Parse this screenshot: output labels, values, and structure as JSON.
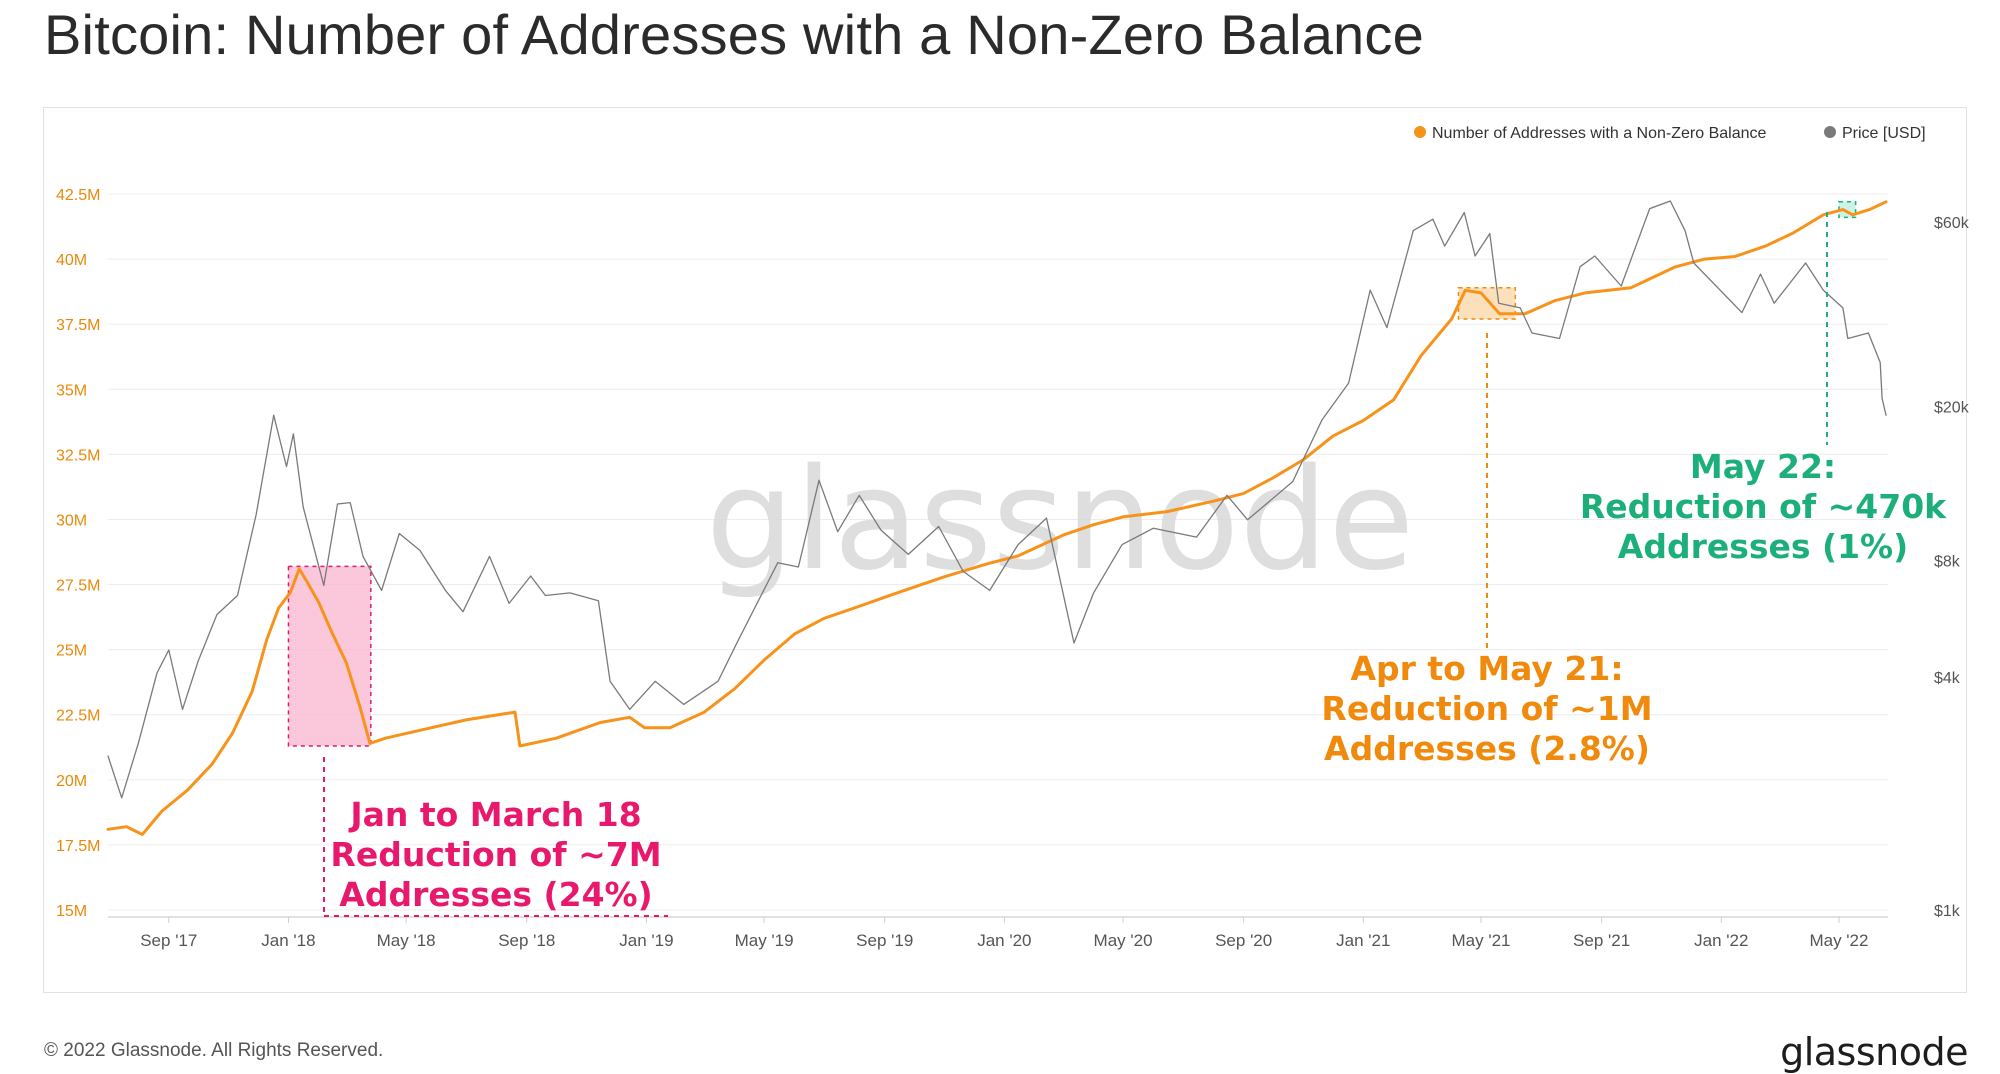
{
  "page": {
    "title": "Bitcoin: Number of Addresses with a Non-Zero Balance",
    "copyright": "© 2022 Glassnode. All Rights Reserved.",
    "logo_text": "glassnode",
    "watermark": "glassnode"
  },
  "chart_data": {
    "type": "line",
    "x_range": [
      "2017-07-01",
      "2022-06-20"
    ],
    "x_ticks": [
      {
        "label": "Sep '17",
        "date": "2017-09-01"
      },
      {
        "label": "Jan '18",
        "date": "2018-01-01"
      },
      {
        "label": "May '18",
        "date": "2018-05-01"
      },
      {
        "label": "Sep '18",
        "date": "2018-09-01"
      },
      {
        "label": "Jan '19",
        "date": "2019-01-01"
      },
      {
        "label": "May '19",
        "date": "2019-05-01"
      },
      {
        "label": "Sep '19",
        "date": "2019-09-01"
      },
      {
        "label": "Jan '20",
        "date": "2020-01-01"
      },
      {
        "label": "May '20",
        "date": "2020-05-01"
      },
      {
        "label": "Sep '20",
        "date": "2020-09-01"
      },
      {
        "label": "Jan '21",
        "date": "2021-01-01"
      },
      {
        "label": "May '21",
        "date": "2021-05-01"
      },
      {
        "label": "Sep '21",
        "date": "2021-09-01"
      },
      {
        "label": "Jan '22",
        "date": "2022-01-01"
      },
      {
        "label": "May '22",
        "date": "2022-05-01"
      }
    ],
    "y_left": {
      "range": [
        15,
        42.5
      ],
      "unit": "M",
      "ticks": [
        {
          "value": 15,
          "label": "15M"
        },
        {
          "value": 17.5,
          "label": "17.5M"
        },
        {
          "value": 20,
          "label": "20M"
        },
        {
          "value": 22.5,
          "label": "22.5M"
        },
        {
          "value": 25,
          "label": "25M"
        },
        {
          "value": 27.5,
          "label": "27.5M"
        },
        {
          "value": 30,
          "label": "30M"
        },
        {
          "value": 32.5,
          "label": "32.5M"
        },
        {
          "value": 35,
          "label": "35M"
        },
        {
          "value": 37.5,
          "label": "37.5M"
        },
        {
          "value": 40,
          "label": "40M"
        },
        {
          "value": 42.5,
          "label": "42.5M"
        }
      ]
    },
    "y_right": {
      "scale": "log",
      "range": [
        1000,
        66000
      ],
      "ticks": [
        {
          "value": 1000,
          "label": "$1k"
        },
        {
          "value": 4000,
          "label": "$4k"
        },
        {
          "value": 8000,
          "label": "$8k"
        },
        {
          "value": 20000,
          "label": "$20k"
        },
        {
          "value": 60000,
          "label": "$60k"
        }
      ]
    },
    "grid": true,
    "legend_position": "top-right",
    "colors": {
      "addresses": "#f7931a",
      "price": "#7a7a7a",
      "pink": "#e8186d",
      "green": "#1daf7a",
      "orange_text": "#f08a0c"
    },
    "series": [
      {
        "name": "Number of Addresses with a Non-Zero Balance",
        "axis": "left",
        "color": "#f7931a",
        "points": [
          [
            "2017-07-01",
            18.1
          ],
          [
            "2017-07-20",
            18.2
          ],
          [
            "2017-08-05",
            17.9
          ],
          [
            "2017-08-25",
            18.8
          ],
          [
            "2017-09-20",
            19.6
          ],
          [
            "2017-10-15",
            20.6
          ],
          [
            "2017-11-05",
            21.8
          ],
          [
            "2017-11-25",
            23.4
          ],
          [
            "2017-12-10",
            25.4
          ],
          [
            "2017-12-22",
            26.6
          ],
          [
            "2018-01-03",
            27.2
          ],
          [
            "2018-01-12",
            28.1
          ],
          [
            "2018-01-20",
            27.6
          ],
          [
            "2018-02-01",
            26.8
          ],
          [
            "2018-02-15",
            25.6
          ],
          [
            "2018-03-01",
            24.5
          ],
          [
            "2018-03-15",
            22.8
          ],
          [
            "2018-03-25",
            21.4
          ],
          [
            "2018-04-10",
            21.6
          ],
          [
            "2018-05-15",
            21.9
          ],
          [
            "2018-07-01",
            22.3
          ],
          [
            "2018-08-20",
            22.6
          ],
          [
            "2018-08-25",
            21.3
          ],
          [
            "2018-10-01",
            21.6
          ],
          [
            "2018-11-15",
            22.2
          ],
          [
            "2018-12-15",
            22.4
          ],
          [
            "2018-12-30",
            22.0
          ],
          [
            "2019-01-25",
            22.0
          ],
          [
            "2019-03-01",
            22.6
          ],
          [
            "2019-04-01",
            23.5
          ],
          [
            "2019-05-01",
            24.6
          ],
          [
            "2019-06-01",
            25.6
          ],
          [
            "2019-07-01",
            26.2
          ],
          [
            "2019-08-01",
            26.6
          ],
          [
            "2019-09-15",
            27.2
          ],
          [
            "2019-11-01",
            27.8
          ],
          [
            "2019-12-15",
            28.3
          ],
          [
            "2020-01-15",
            28.6
          ],
          [
            "2020-03-01",
            29.4
          ],
          [
            "2020-04-01",
            29.8
          ],
          [
            "2020-05-01",
            30.1
          ],
          [
            "2020-06-15",
            30.3
          ],
          [
            "2020-08-01",
            30.7
          ],
          [
            "2020-09-01",
            31.0
          ],
          [
            "2020-10-01",
            31.6
          ],
          [
            "2020-11-01",
            32.3
          ],
          [
            "2020-12-01",
            33.2
          ],
          [
            "2021-01-01",
            33.8
          ],
          [
            "2021-02-01",
            34.6
          ],
          [
            "2021-03-01",
            36.3
          ],
          [
            "2021-04-01",
            37.7
          ],
          [
            "2021-04-15",
            38.8
          ],
          [
            "2021-05-01",
            38.7
          ],
          [
            "2021-05-20",
            37.9
          ],
          [
            "2021-06-15",
            37.9
          ],
          [
            "2021-07-15",
            38.4
          ],
          [
            "2021-08-15",
            38.7
          ],
          [
            "2021-10-01",
            38.9
          ],
          [
            "2021-11-15",
            39.7
          ],
          [
            "2021-12-15",
            40.0
          ],
          [
            "2022-01-15",
            40.1
          ],
          [
            "2022-02-15",
            40.5
          ],
          [
            "2022-03-15",
            41.0
          ],
          [
            "2022-04-15",
            41.7
          ],
          [
            "2022-05-05",
            41.9
          ],
          [
            "2022-05-15",
            41.7
          ],
          [
            "2022-06-01",
            41.9
          ],
          [
            "2022-06-18",
            42.2
          ]
        ]
      },
      {
        "name": "Price [USD]",
        "axis": "right",
        "color": "#7a7a7a",
        "points": [
          [
            "2017-07-01",
            2500
          ],
          [
            "2017-07-15",
            1950
          ],
          [
            "2017-08-01",
            2700
          ],
          [
            "2017-08-20",
            4100
          ],
          [
            "2017-09-01",
            4700
          ],
          [
            "2017-09-15",
            3300
          ],
          [
            "2017-10-01",
            4400
          ],
          [
            "2017-10-20",
            5800
          ],
          [
            "2017-11-10",
            6500
          ],
          [
            "2017-11-29",
            10500
          ],
          [
            "2017-12-17",
            19000
          ],
          [
            "2017-12-30",
            14000
          ],
          [
            "2018-01-06",
            17000
          ],
          [
            "2018-01-16",
            11000
          ],
          [
            "2018-02-06",
            6900
          ],
          [
            "2018-02-20",
            11200
          ],
          [
            "2018-03-05",
            11300
          ],
          [
            "2018-03-18",
            8200
          ],
          [
            "2018-04-06",
            6700
          ],
          [
            "2018-04-24",
            9400
          ],
          [
            "2018-05-15",
            8500
          ],
          [
            "2018-06-10",
            6700
          ],
          [
            "2018-06-28",
            5900
          ],
          [
            "2018-07-25",
            8200
          ],
          [
            "2018-08-14",
            6200
          ],
          [
            "2018-09-05",
            7300
          ],
          [
            "2018-09-20",
            6500
          ],
          [
            "2018-10-15",
            6600
          ],
          [
            "2018-11-13",
            6300
          ],
          [
            "2018-11-25",
            3900
          ],
          [
            "2018-12-15",
            3300
          ],
          [
            "2019-01-10",
            3900
          ],
          [
            "2019-02-08",
            3400
          ],
          [
            "2019-03-15",
            3900
          ],
          [
            "2019-04-05",
            5000
          ],
          [
            "2019-05-15",
            7900
          ],
          [
            "2019-06-05",
            7700
          ],
          [
            "2019-06-26",
            12900
          ],
          [
            "2019-07-15",
            9500
          ],
          [
            "2019-08-06",
            11800
          ],
          [
            "2019-08-28",
            9600
          ],
          [
            "2019-09-25",
            8300
          ],
          [
            "2019-10-26",
            9800
          ],
          [
            "2019-11-20",
            7500
          ],
          [
            "2019-12-17",
            6700
          ],
          [
            "2020-01-15",
            8800
          ],
          [
            "2020-02-13",
            10300
          ],
          [
            "2020-03-12",
            4900
          ],
          [
            "2020-04-01",
            6600
          ],
          [
            "2020-04-30",
            8800
          ],
          [
            "2020-06-01",
            9700
          ],
          [
            "2020-07-15",
            9200
          ],
          [
            "2020-08-15",
            11800
          ],
          [
            "2020-09-05",
            10200
          ],
          [
            "2020-10-21",
            12800
          ],
          [
            "2020-11-20",
            18500
          ],
          [
            "2020-12-17",
            23000
          ],
          [
            "2021-01-08",
            40000
          ],
          [
            "2021-01-25",
            32000
          ],
          [
            "2021-02-21",
            57000
          ],
          [
            "2021-03-13",
            61000
          ],
          [
            "2021-03-25",
            52000
          ],
          [
            "2021-04-14",
            63500
          ],
          [
            "2021-04-25",
            49000
          ],
          [
            "2021-05-10",
            56000
          ],
          [
            "2021-05-19",
            37000
          ],
          [
            "2021-06-10",
            36000
          ],
          [
            "2021-06-22",
            31000
          ],
          [
            "2021-07-20",
            30000
          ],
          [
            "2021-08-10",
            46000
          ],
          [
            "2021-08-25",
            49000
          ],
          [
            "2021-09-21",
            41000
          ],
          [
            "2021-10-20",
            65000
          ],
          [
            "2021-11-10",
            68000
          ],
          [
            "2021-11-25",
            57000
          ],
          [
            "2021-12-04",
            47000
          ],
          [
            "2022-01-22",
            35000
          ],
          [
            "2022-02-10",
            44000
          ],
          [
            "2022-02-24",
            37000
          ],
          [
            "2022-03-28",
            47000
          ],
          [
            "2022-04-15",
            40000
          ],
          [
            "2022-05-05",
            36000
          ],
          [
            "2022-05-10",
            30000
          ],
          [
            "2022-05-31",
            31000
          ],
          [
            "2022-06-12",
            26000
          ],
          [
            "2022-06-14",
            21000
          ],
          [
            "2022-06-18",
            19000
          ]
        ]
      }
    ],
    "legend": [
      {
        "label": "Number of Addresses with a Non-Zero Balance",
        "color": "#f7931a"
      },
      {
        "label": "Price [USD]",
        "color": "#7a7a7a"
      }
    ],
    "annotations": [
      {
        "id": "pink",
        "lines": [
          "Jan to March 18",
          "Reduction of ~7M",
          "Addresses (24%)"
        ],
        "color": "#e8186d",
        "box": {
          "x0": "2018-01-01",
          "x1": "2018-03-26",
          "y0": 21.3,
          "y1": 28.2
        }
      },
      {
        "id": "orange",
        "lines": [
          "Apr to May 21:",
          "Reduction of ~1M",
          "Addresses (2.8%)"
        ],
        "color": "#f08a0c",
        "box": {
          "x0": "2021-04-08",
          "x1": "2021-06-05",
          "y0": 37.7,
          "y1": 38.9
        }
      },
      {
        "id": "green",
        "lines": [
          "May 22:",
          "Reduction of ~470k",
          "Addresses (1%)"
        ],
        "color": "#1daf7a",
        "box": {
          "x0": "2022-05-01",
          "x1": "2022-05-18",
          "y0": 41.6,
          "y1": 42.2
        }
      }
    ]
  }
}
